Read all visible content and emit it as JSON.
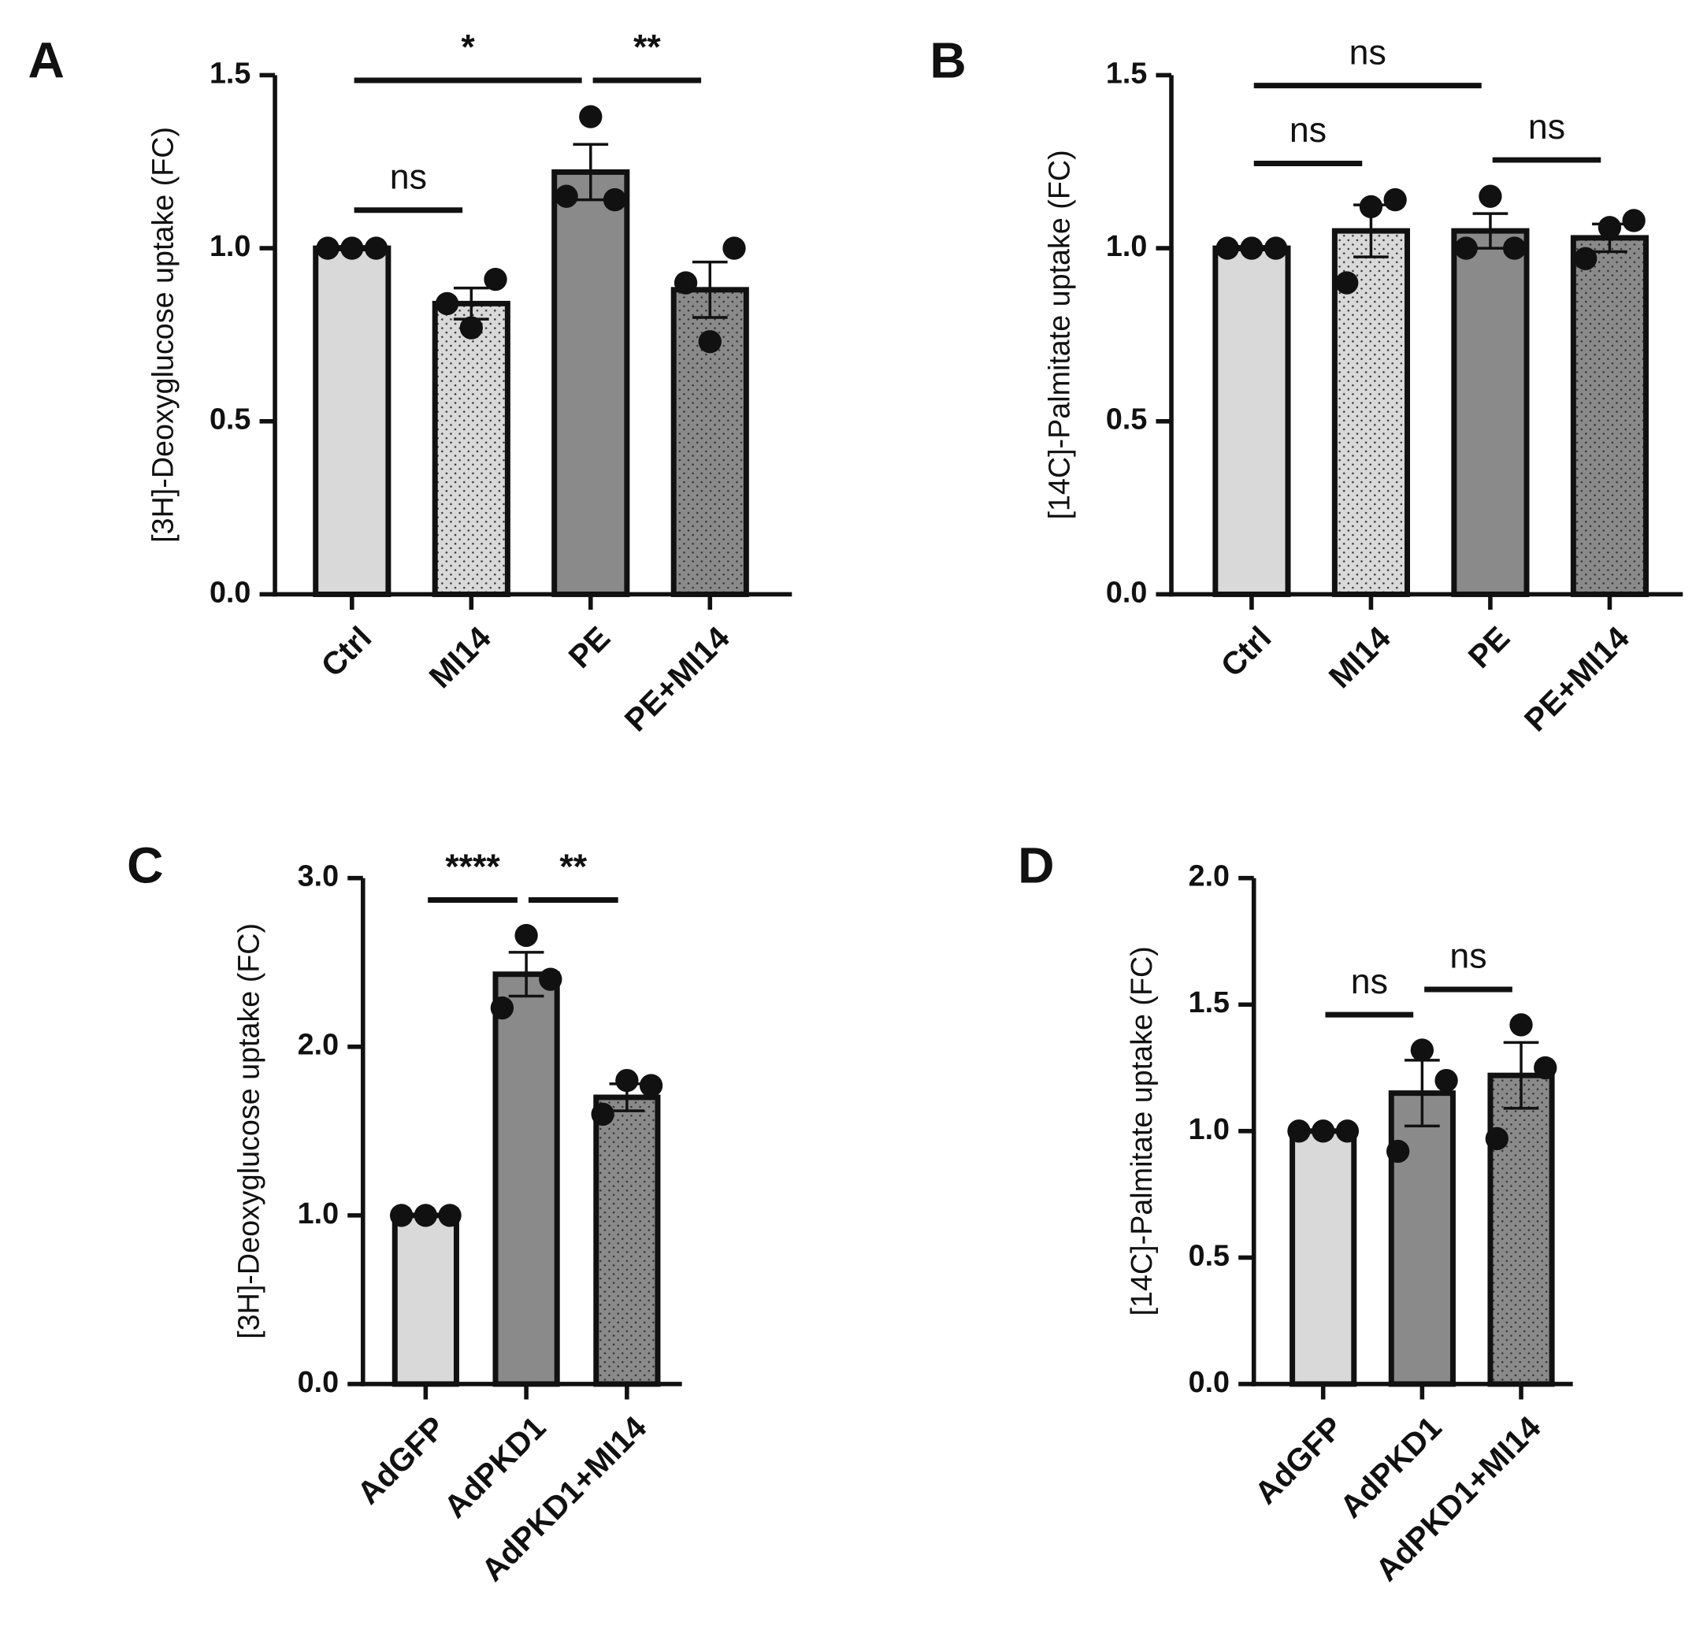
{
  "chart_data": [
    {
      "type": "bar",
      "panel": "A",
      "ylabel": "[3H]-Deoxyglucose uptake (FC)",
      "categories": [
        "Ctrl",
        "MI14",
        "PE",
        "PE+MI14"
      ],
      "values": [
        1.0,
        0.84,
        1.22,
        0.88
      ],
      "errors": [
        0.005,
        0.045,
        0.08,
        0.08
      ],
      "points": [
        [
          1.0,
          1.0,
          1.0
        ],
        [
          0.84,
          0.77,
          0.91
        ],
        [
          1.15,
          1.38,
          1.14
        ],
        [
          0.9,
          0.73,
          1.0
        ]
      ],
      "colors": [
        "#d9d9d9",
        "#d9d9d9",
        "#8a8a8a",
        "#8a8a8a"
      ],
      "dotted": [
        false,
        true,
        false,
        true
      ],
      "ylim": [
        0,
        1.5
      ],
      "yticks": [
        {
          "value": 0,
          "label": "0.0"
        },
        0.5,
        {
          "value": 1,
          "label": "1.0"
        },
        1.5
      ],
      "significance": [
        {
          "from": "Ctrl",
          "to": "MI14",
          "label": "ns"
        },
        {
          "from": "Ctrl",
          "to": "PE",
          "label": "*"
        },
        {
          "from": "PE",
          "to": "PE+MI14",
          "label": "**"
        }
      ]
    },
    {
      "type": "bar",
      "panel": "B",
      "ylabel": "[14C]-Palmitate uptake (FC)",
      "categories": [
        "Ctrl",
        "MI14",
        "PE",
        "PE+MI14"
      ],
      "values": [
        1.0,
        1.05,
        1.05,
        1.03
      ],
      "errors": [
        0.005,
        0.075,
        0.05,
        0.04
      ],
      "points": [
        [
          1.0,
          1.0,
          1.0
        ],
        [
          0.9,
          1.12,
          1.14
        ],
        [
          1.0,
          1.15,
          1.0
        ],
        [
          0.97,
          1.06,
          1.08
        ]
      ],
      "colors": [
        "#d9d9d9",
        "#d9d9d9",
        "#8a8a8a",
        "#8a8a8a"
      ],
      "dotted": [
        false,
        true,
        false,
        true
      ],
      "ylim": [
        0,
        1.5
      ],
      "yticks": [
        {
          "value": 0,
          "label": "0.0"
        },
        0.5,
        {
          "value": 1,
          "label": "1.0"
        },
        1.5
      ],
      "significance": [
        {
          "from": "Ctrl",
          "to": "MI14",
          "label": "ns"
        },
        {
          "from": "Ctrl",
          "to": "PE",
          "label": "ns"
        },
        {
          "from": "PE",
          "to": "PE+MI14",
          "label": "ns"
        }
      ]
    },
    {
      "type": "bar",
      "panel": "C",
      "ylabel": "[3H]-Deoxyglucose uptake (FC)",
      "categories": [
        "AdGFP",
        "AdPKD1",
        "AdPKD1+MI14"
      ],
      "values": [
        1.0,
        2.43,
        1.7
      ],
      "errors": [
        0.005,
        0.13,
        0.08
      ],
      "points": [
        [
          1.0,
          1.0,
          1.0
        ],
        [
          2.23,
          2.66,
          2.4
        ],
        [
          1.6,
          1.8,
          1.77
        ]
      ],
      "colors": [
        "#d9d9d9",
        "#8a8a8a",
        "#8a8a8a"
      ],
      "dotted": [
        false,
        false,
        true
      ],
      "ylim": [
        0,
        3
      ],
      "yticks": [
        {
          "value": 0,
          "label": "0.0"
        },
        {
          "value": 1,
          "label": "1.0"
        },
        {
          "value": 2,
          "label": "2.0"
        },
        {
          "value": 3,
          "label": "3.0"
        }
      ],
      "significance": [
        {
          "from": "AdGFP",
          "to": "AdPKD1",
          "label": "****"
        },
        {
          "from": "AdPKD1",
          "to": "AdPKD1+MI14",
          "label": "**"
        }
      ]
    },
    {
      "type": "bar",
      "panel": "D",
      "ylabel": "[14C]-Palmitate uptake (FC)",
      "categories": [
        "AdGFP",
        "AdPKD1",
        "AdPKD1+MI14"
      ],
      "values": [
        1.0,
        1.15,
        1.22
      ],
      "errors": [
        0.005,
        0.13,
        0.13
      ],
      "points": [
        [
          1.0,
          1.0,
          1.0
        ],
        [
          0.92,
          1.32,
          1.2
        ],
        [
          0.97,
          1.42,
          1.25
        ]
      ],
      "colors": [
        "#d9d9d9",
        "#8a8a8a",
        "#8a8a8a"
      ],
      "dotted": [
        false,
        false,
        true
      ],
      "ylim": [
        0,
        2
      ],
      "yticks": [
        {
          "value": 0,
          "label": "0.0"
        },
        0.5,
        {
          "value": 1,
          "label": "1.0"
        },
        1.5,
        {
          "value": 2,
          "label": "2.0"
        }
      ],
      "significance": [
        {
          "from": "AdGFP",
          "to": "AdPKD1",
          "label": "ns"
        },
        {
          "from": "AdPKD1",
          "to": "AdPKD1+MI14",
          "label": "ns"
        }
      ]
    }
  ]
}
